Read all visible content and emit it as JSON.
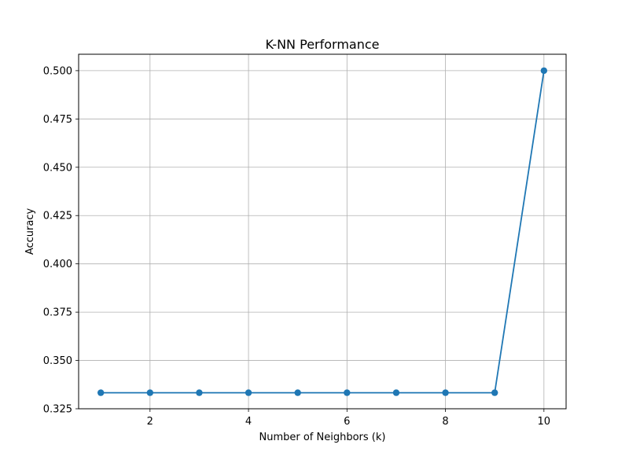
{
  "chart_data": {
    "type": "line",
    "title": "K-NN Performance",
    "xlabel": "Number of Neighbors (k)",
    "ylabel": "Accuracy",
    "x": [
      1,
      2,
      3,
      4,
      5,
      6,
      7,
      8,
      9,
      10
    ],
    "series": [
      {
        "values": [
          0.3333,
          0.3333,
          0.3333,
          0.3333,
          0.3333,
          0.3333,
          0.3333,
          0.3333,
          0.3333,
          0.5
        ],
        "color": "#1f77b4",
        "marker": "circle"
      }
    ],
    "xlim": [
      0.55,
      10.45
    ],
    "ylim": [
      0.325,
      0.5085
    ],
    "xticks": [
      2,
      4,
      6,
      8,
      10
    ],
    "xtick_labels": [
      "2",
      "4",
      "6",
      "8",
      "10"
    ],
    "yticks": [
      0.325,
      0.35,
      0.375,
      0.4,
      0.425,
      0.45,
      0.475,
      0.5
    ],
    "ytick_labels": [
      "0.325",
      "0.350",
      "0.375",
      "0.400",
      "0.425",
      "0.450",
      "0.475",
      "0.500"
    ],
    "grid": true,
    "legend": "none"
  }
}
